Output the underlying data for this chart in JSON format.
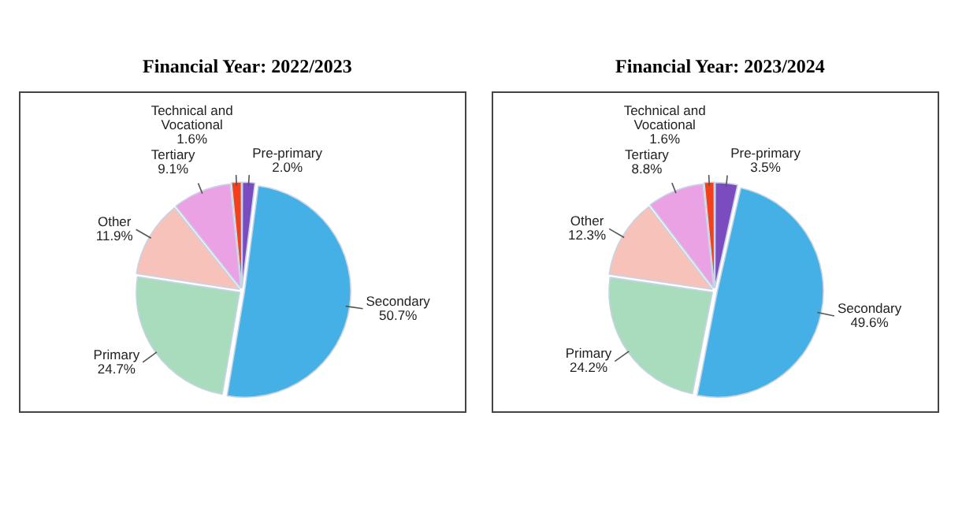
{
  "chart_data": [
    {
      "type": "pie",
      "title": "Financial Year: 2022/2023",
      "categories": [
        "Pre-primary",
        "Secondary",
        "Primary",
        "Other",
        "Tertiary",
        "Technical and Vocational"
      ],
      "values": [
        2.0,
        50.7,
        24.7,
        11.9,
        9.1,
        1.6
      ],
      "colors": [
        "#7a4cc0",
        "#45b0e6",
        "#a8dcbc",
        "#f6c2ba",
        "#eaa2e4",
        "#f2401c"
      ],
      "value_labels": [
        "2.0%",
        "50.7%",
        "24.7%",
        "11.9%",
        "9.1%",
        "1.6%"
      ],
      "legend": false
    },
    {
      "type": "pie",
      "title": "Financial Year: 2023/2024",
      "categories": [
        "Pre-primary",
        "Secondary",
        "Primary",
        "Other",
        "Tertiary",
        "Technical and Vocational"
      ],
      "values": [
        3.5,
        49.6,
        24.2,
        12.3,
        8.8,
        1.6
      ],
      "colors": [
        "#7a4cc0",
        "#45b0e6",
        "#a8dcbc",
        "#f6c2ba",
        "#eaa2e4",
        "#f2401c"
      ],
      "value_labels": [
        "3.5%",
        "49.6%",
        "24.2%",
        "12.3%",
        "8.8%",
        "1.6%"
      ],
      "legend": false
    }
  ]
}
